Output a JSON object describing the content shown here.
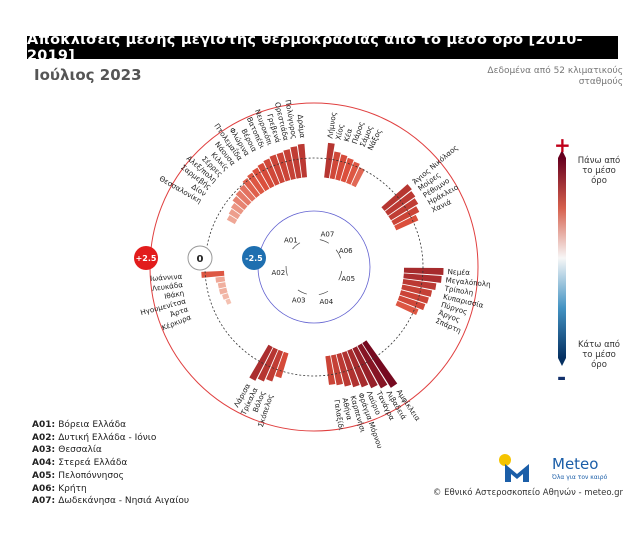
{
  "title": "Αποκλίσεις μέσης μέγιστης θερμοκρασίας από το μέσο όρο [2010-2019]",
  "subtitle": "Ιούλιος 2023",
  "note": "Δεδομένα από 52 κλιματικούς σταθμούς",
  "colors": {
    "positive_dark": "#7a0a1f",
    "positive_mid": "#d9493a",
    "positive_light": "#f6d2c4",
    "negative": "#1a5aa8",
    "outer_ring": "#e04040",
    "inner_ring": "#6060d0"
  },
  "scale_labels": {
    "plus": "+2.5",
    "zero": "0",
    "minus": "-2.5"
  },
  "colorbar": {
    "top_symbol": "+",
    "top_label": "Πάνω από το μέσο όρο",
    "bottom_symbol": "-",
    "bottom_label": "Κάτω από το μέσο όρο"
  },
  "legend": [
    {
      "code": "A01:",
      "name": "Βόρεια Ελλάδα"
    },
    {
      "code": "A02:",
      "name": "Δυτική Ελλάδα - Ιόνιο"
    },
    {
      "code": "A03:",
      "name": "Θεσσαλία"
    },
    {
      "code": "A04:",
      "name": "Στερεά Ελλάδα"
    },
    {
      "code": "A05:",
      "name": "Πελοπόννησος"
    },
    {
      "code": "A06:",
      "name": "Κρήτη"
    },
    {
      "code": "A07:",
      "name": "Δωδεκάνησα - Νησιά Αιγαίου"
    }
  ],
  "logo": {
    "name": "Meteo",
    "tagline": "Όλα για τον καιρό"
  },
  "credit": "© Εθνικό Αστεροσκοπείο Αθηνών - meteo.gr",
  "chart_data": {
    "type": "radial-bar",
    "title": "Αποκλίσεις μέσης μέγιστης θερμοκρασίας από το μέσο όρο [2010-2019]",
    "unit": "°C",
    "radial_range": [
      -2.5,
      2.5
    ],
    "regions": [
      {
        "code": "A07",
        "stations": [
          {
            "name": "Λήμνος",
            "value": 2.3
          },
          {
            "name": "Χίος",
            "value": 1.8
          },
          {
            "name": "Κέα",
            "value": 1.7
          },
          {
            "name": "Πάρος",
            "value": 1.6
          },
          {
            "name": "Σάμος",
            "value": 1.5
          },
          {
            "name": "Νάξος",
            "value": 1.3
          }
        ]
      },
      {
        "code": "A06",
        "stations": [
          {
            "name": "Άγιος Νικόλαος",
            "value": 2.3
          },
          {
            "name": "Μοίρες",
            "value": 2.2
          },
          {
            "name": "Ρέθυμνο",
            "value": 2.1
          },
          {
            "name": "Ηράκλειο",
            "value": 1.9
          },
          {
            "name": "Χανιά",
            "value": 1.6
          }
        ]
      },
      {
        "code": "A05",
        "stations": [
          {
            "name": "Νεμέα",
            "value": 2.6
          },
          {
            "name": "Μεγαλόπολη",
            "value": 2.5
          },
          {
            "name": "Τρίπολη",
            "value": 2.2
          },
          {
            "name": "Κυπαρισσία",
            "value": 2.0
          },
          {
            "name": "Πύργος",
            "value": 1.9
          },
          {
            "name": "Άργος",
            "value": 1.8
          },
          {
            "name": "Σπάρτη",
            "value": 1.5
          }
        ]
      },
      {
        "code": "A04",
        "stations": [
          {
            "name": "Αμφίκλεια",
            "value": 3.5
          },
          {
            "name": "Λιβαδειά",
            "value": 3.2
          },
          {
            "name": "Τανάγρα",
            "value": 2.9
          },
          {
            "name": "Λαύριο",
            "value": 2.6
          },
          {
            "name": "Φράγμα Μόρνου",
            "value": 2.4
          },
          {
            "name": "Καρπενήσι",
            "value": 2.2
          },
          {
            "name": "Αθήνα",
            "value": 2.0
          },
          {
            "name": "Γαλαξίδι",
            "value": 1.9
          }
        ]
      },
      {
        "code": "A03",
        "stations": [
          {
            "name": "Λάρισα",
            "value": 2.5
          },
          {
            "name": "Τρίκαλα",
            "value": 2.3
          },
          {
            "name": "Βόλος",
            "value": 2.1
          },
          {
            "name": "Σκόπελος",
            "value": 1.7
          }
        ]
      },
      {
        "code": "A02",
        "stations": [
          {
            "name": "Ιωάννινα",
            "value": 1.5
          },
          {
            "name": "Λευκάδα",
            "value": 0.6
          },
          {
            "name": "Ιθάκη",
            "value": 0.5
          },
          {
            "name": "Ηγουμενίτσα",
            "value": 0.5
          },
          {
            "name": "Άρτα",
            "value": 0.4
          },
          {
            "name": "Κέρκυρα",
            "value": 0.3
          }
        ]
      },
      {
        "code": "A01",
        "stations": [
          {
            "name": "Δράμα",
            "value": 2.2
          },
          {
            "name": "Πολύγυρος",
            "value": 2.1
          },
          {
            "name": "Ορεστιάδα",
            "value": 2.0
          },
          {
            "name": "Γρεβενά",
            "value": 1.9
          },
          {
            "name": "Νευροκόπι",
            "value": 1.9
          },
          {
            "name": "Βατοπέδι",
            "value": 1.8
          },
          {
            "name": "Βέροια",
            "value": 1.7
          },
          {
            "name": "Φλώρινα",
            "value": 1.6
          },
          {
            "name": "Πτολεμαΐδα",
            "value": 1.5
          },
          {
            "name": "Νάουσα",
            "value": 1.4
          },
          {
            "name": "Κιλκίς",
            "value": 1.2
          },
          {
            "name": "Σέρρες",
            "value": 1.1
          },
          {
            "name": "Αλεξ/πολη",
            "value": 1.0
          },
          {
            "name": "Σαρμεβής",
            "value": 0.8
          },
          {
            "name": "Δίον",
            "value": 0.7
          },
          {
            "name": "Θεσσαλονίκη",
            "value": 0.6
          }
        ]
      }
    ]
  }
}
